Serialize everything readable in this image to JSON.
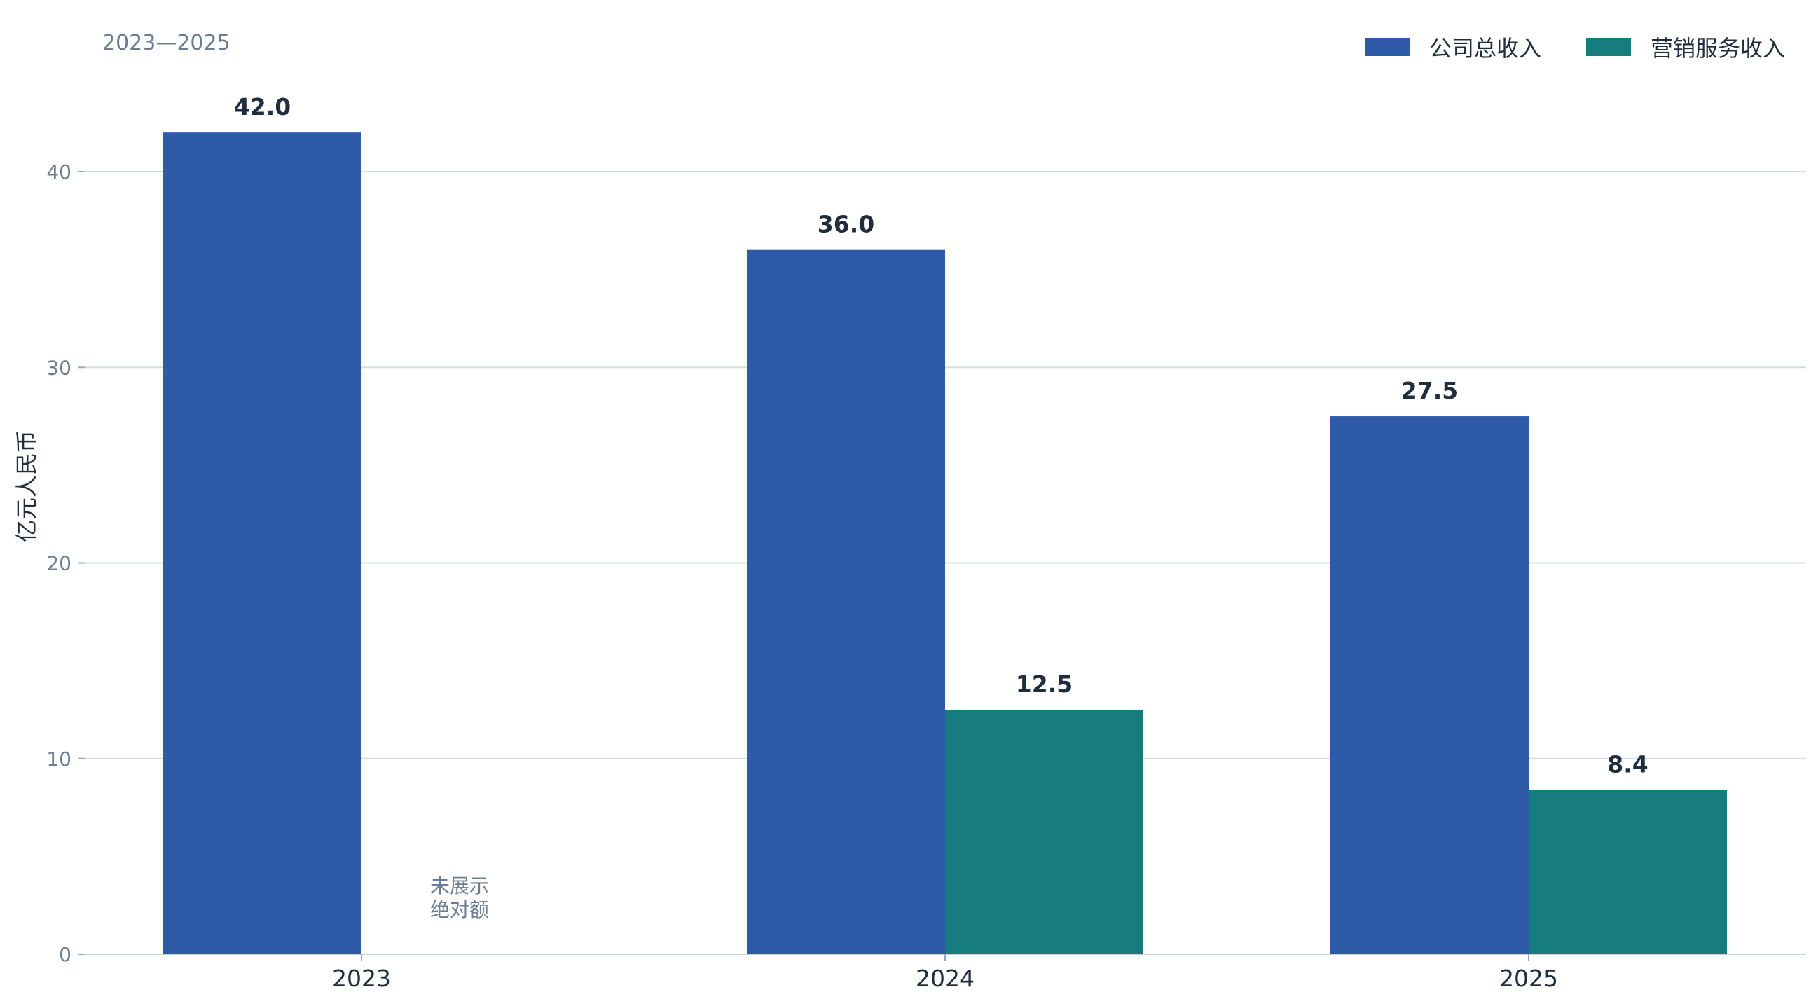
{
  "chart_data": {
    "type": "bar",
    "subtitle": "2023—2025",
    "ylabel": "亿元人民币",
    "xlabel": "",
    "categories": [
      "2023",
      "2024",
      "2025"
    ],
    "ylim": [
      0,
      45
    ],
    "yticks": [
      0,
      10,
      20,
      30,
      40
    ],
    "grid": true,
    "legend_position": "top-right",
    "series": [
      {
        "name": "公司总收入",
        "color": "#2e5aa8",
        "values": [
          42.0,
          36.0,
          27.5
        ],
        "labels": [
          "42.0",
          "36.0",
          "27.5"
        ]
      },
      {
        "name": "营销服务收入",
        "color": "#177c7e",
        "values": [
          null,
          12.5,
          8.4
        ],
        "labels": [
          "",
          "12.5",
          "8.4"
        ]
      }
    ],
    "annotation": {
      "line1": "未展示",
      "line2": "绝对额"
    }
  }
}
